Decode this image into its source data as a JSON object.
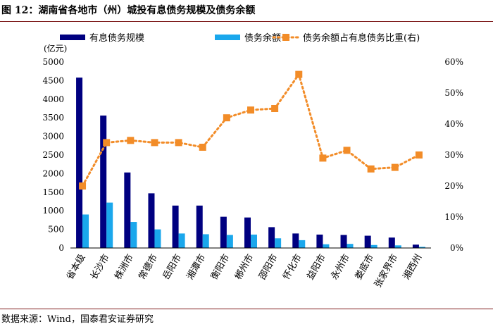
{
  "figure": {
    "title": "图 12：湖南省各地市（州）城投有息债务规模及债务余额",
    "source": "数据来源：Wind，国泰君安证券研究"
  },
  "chart_data": {
    "type": "bar",
    "categories": [
      "省本级",
      "长沙市",
      "株洲市",
      "常德市",
      "岳阳市",
      "湘潭市",
      "衡阳市",
      "郴州市",
      "邵阳市",
      "怀化市",
      "益阳市",
      "永州市",
      "娄底市",
      "张家界市",
      "湘西州"
    ],
    "series": [
      {
        "name": "有息债务规模",
        "kind": "bar",
        "axis": "left",
        "color": "#000080",
        "values": [
          4580,
          3560,
          2030,
          1470,
          1140,
          1140,
          840,
          820,
          560,
          390,
          360,
          350,
          330,
          280,
          90
        ]
      },
      {
        "name": "债务余额",
        "kind": "bar",
        "axis": "left",
        "color": "#1aa7ec",
        "values": [
          900,
          1220,
          700,
          500,
          390,
          370,
          350,
          360,
          260,
          210,
          100,
          110,
          80,
          70,
          30
        ]
      },
      {
        "name": "债务余额占有息债务比重(右)",
        "kind": "line",
        "axis": "right",
        "color": "#f28c28",
        "values": [
          0.2,
          0.34,
          0.347,
          0.34,
          0.34,
          0.325,
          0.42,
          0.445,
          0.45,
          0.56,
          0.29,
          0.315,
          0.255,
          0.26,
          0.3
        ]
      }
    ],
    "yunit": "(亿元)",
    "ylim": [
      0,
      5000
    ],
    "yticks": [
      0,
      500,
      1000,
      1500,
      2000,
      2500,
      3000,
      3500,
      4000,
      4500,
      5000
    ],
    "y2lim": [
      0,
      0.6
    ],
    "y2ticks": [
      "0%",
      "10%",
      "20%",
      "30%",
      "40%",
      "50%",
      "60%"
    ],
    "legend": "top",
    "grid": false
  }
}
